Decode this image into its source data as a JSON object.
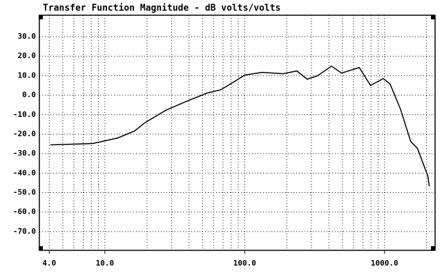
{
  "chart_data": {
    "type": "line",
    "title": "Transfer Function Magnitude - dB volts/volts",
    "log_x": true,
    "grid": true,
    "xlim": [
      3.4,
      2300
    ],
    "ylim": [
      -79.6,
      41
    ],
    "xticks": [
      {
        "value": 4,
        "label": "4.0"
      },
      {
        "value": 10,
        "label": "10.0"
      },
      {
        "value": 100,
        "label": "100.0"
      },
      {
        "value": 1000,
        "label": "1000.0"
      }
    ],
    "yticks": [
      {
        "value": 30,
        "label": "30.0"
      },
      {
        "value": 20,
        "label": "20.0"
      },
      {
        "value": 10,
        "label": "10.0"
      },
      {
        "value": 0,
        "label": "0.0"
      },
      {
        "value": -10,
        "label": "-10.0"
      },
      {
        "value": -20,
        "label": "-20.0"
      },
      {
        "value": -30,
        "label": "-30.0"
      },
      {
        "value": -40,
        "label": "-40.0"
      },
      {
        "value": -50,
        "label": "-50.0"
      },
      {
        "value": -60,
        "label": "-60.0"
      },
      {
        "value": -70,
        "label": "-70.0"
      }
    ],
    "x": [
      4.07,
      8.2,
      12.3,
      16.3,
      19.3,
      27.2,
      38.3,
      53.9,
      67.8,
      84.9,
      100,
      133,
      188,
      236,
      280,
      331,
      417,
      493,
      660,
      794,
      980,
      1096,
      1300,
      1540,
      1720,
      2040,
      2090
    ],
    "series": [
      {
        "color": "#000000",
        "values": [
          -25.5,
          -24.8,
          -22,
          -18.4,
          -14.2,
          -7.8,
          -3.2,
          1.1,
          2.8,
          7.1,
          10.3,
          11.7,
          11,
          12.4,
          8.2,
          9.9,
          14.9,
          11.3,
          14.2,
          5,
          8.5,
          5.7,
          -7.1,
          -23.8,
          -27.3,
          -41.5,
          -46.8
        ]
      }
    ]
  }
}
